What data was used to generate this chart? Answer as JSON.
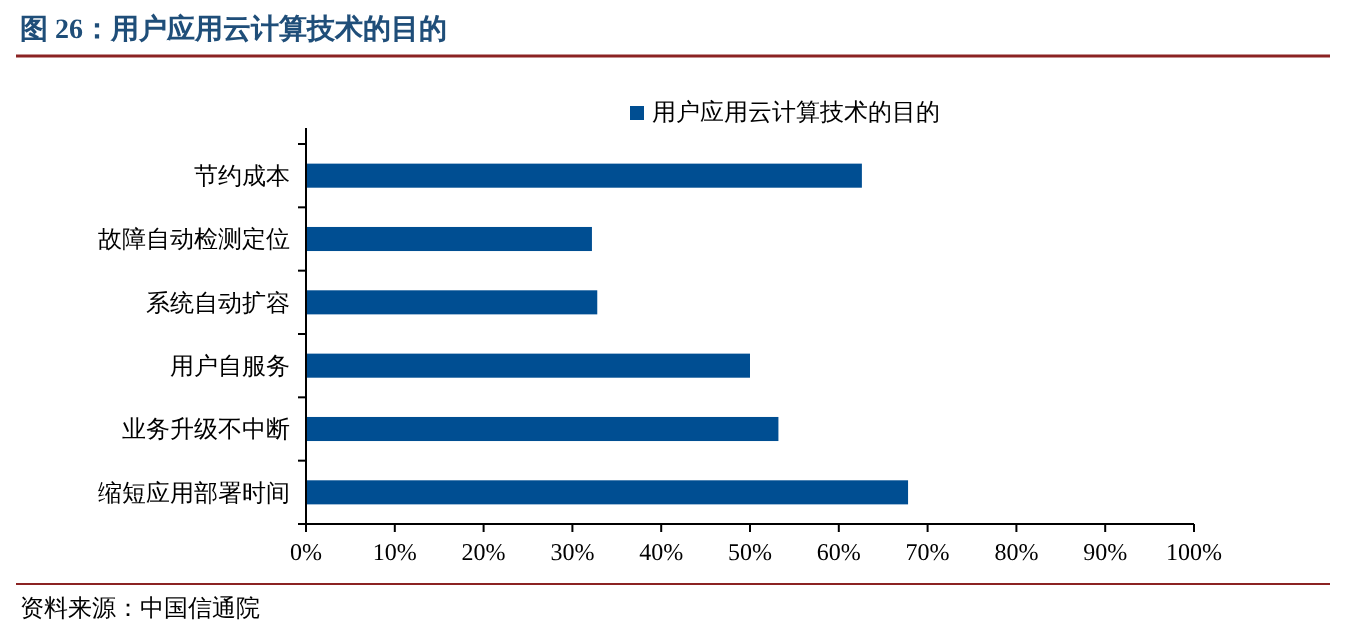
{
  "chart_data": {
    "type": "bar",
    "orientation": "horizontal",
    "title": "图 26：用户应用云计算技术的目的",
    "categories": [
      "节约成本",
      "故障自动检测定位",
      "系统自动扩容",
      "用户自服务",
      "业务升级不中断",
      "缩短应用部署时间"
    ],
    "series": [
      {
        "name": "用户应用云计算技术的目的",
        "color": "#004e92",
        "values": [
          62.6,
          32.2,
          32.8,
          50.0,
          53.2,
          67.8
        ]
      }
    ],
    "xlim": [
      0,
      100
    ],
    "xticks": [
      {
        "value": 0,
        "label": "0%"
      },
      {
        "value": 10,
        "label": "10%"
      },
      {
        "value": 20,
        "label": "20%"
      },
      {
        "value": 30,
        "label": "30%"
      },
      {
        "value": 40,
        "label": "40%"
      },
      {
        "value": 50,
        "label": "50%"
      },
      {
        "value": 60,
        "label": "60%"
      },
      {
        "value": 70,
        "label": "70%"
      },
      {
        "value": 80,
        "label": "80%"
      },
      {
        "value": 90,
        "label": "90%"
      },
      {
        "value": 100,
        "label": "100%"
      }
    ],
    "legend": "top",
    "grid": false,
    "annotations": [
      "资料来源：中国信通院"
    ]
  }
}
